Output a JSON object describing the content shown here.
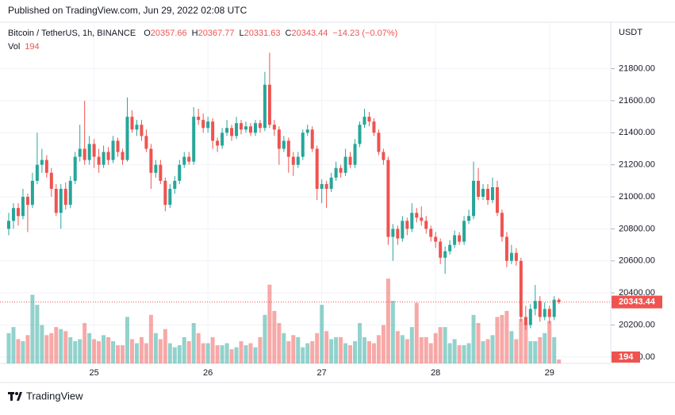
{
  "header": {
    "published": "Published on TradingView.com, Jun 29, 2022 02:08 UTC"
  },
  "chart_data": {
    "type": "candlestick",
    "symbol": "Bitcoin / TetherUS, 1h, BINANCE",
    "ohlc_labels": [
      "O",
      "H",
      "L",
      "C"
    ],
    "change": "−14.23 (−0.07%)",
    "volume_label": "Vol",
    "currency": "USDT",
    "footer": "TradingView",
    "up_color": "#26a69a",
    "down_color": "#ef5350",
    "ylim": [
      19960,
      22090
    ],
    "vol_ylim": [
      0,
      4400
    ],
    "grid": true,
    "yticks": [
      {
        "value": 20000,
        "label": "20000.00"
      },
      {
        "value": 20200,
        "label": "20200.00"
      },
      {
        "value": 20400,
        "label": "20400.00"
      },
      {
        "value": 20600,
        "label": "20600.00"
      },
      {
        "value": 20800,
        "label": "20800.00"
      },
      {
        "value": 21000,
        "label": "21000.00"
      },
      {
        "value": 21200,
        "label": "21200.00"
      },
      {
        "value": 21400,
        "label": "21400.00"
      },
      {
        "value": 21600,
        "label": "21600.00"
      },
      {
        "value": 21800,
        "label": "21800.00"
      }
    ],
    "categories": [
      null,
      null,
      null,
      null,
      null,
      null,
      null,
      null,
      null,
      null,
      null,
      null,
      null,
      null,
      null,
      null,
      null,
      null,
      "25",
      null,
      null,
      null,
      null,
      null,
      null,
      null,
      null,
      null,
      null,
      null,
      null,
      null,
      null,
      null,
      null,
      null,
      null,
      null,
      null,
      null,
      null,
      null,
      "26",
      null,
      null,
      null,
      null,
      null,
      null,
      null,
      null,
      null,
      null,
      null,
      null,
      null,
      null,
      null,
      null,
      null,
      null,
      null,
      null,
      null,
      null,
      null,
      "27",
      null,
      null,
      null,
      null,
      null,
      null,
      null,
      null,
      null,
      null,
      null,
      null,
      null,
      null,
      null,
      null,
      null,
      null,
      null,
      null,
      null,
      null,
      null,
      "28",
      null,
      null,
      null,
      null,
      null,
      null,
      null,
      null,
      null,
      null,
      null,
      null,
      null,
      null,
      null,
      null,
      null,
      null,
      null,
      null,
      null,
      null,
      null,
      "29",
      null,
      null
    ],
    "candles": [
      [
        20800,
        20900,
        20760,
        20850
      ],
      [
        20850,
        20960,
        20800,
        20930
      ],
      [
        20930,
        20960,
        20820,
        20880
      ],
      [
        20880,
        21050,
        20860,
        21000
      ],
      [
        21000,
        21020,
        20780,
        20950
      ],
      [
        20950,
        21150,
        20930,
        21100
      ],
      [
        21100,
        21400,
        21080,
        21200
      ],
      [
        21200,
        21300,
        21150,
        21230
      ],
      [
        21230,
        21260,
        21120,
        21150
      ],
      [
        21150,
        21180,
        21000,
        21050
      ],
      [
        21050,
        21080,
        20880,
        20900
      ],
      [
        20900,
        21080,
        20800,
        21050
      ],
      [
        21050,
        21090,
        20920,
        20950
      ],
      [
        20950,
        21130,
        20930,
        21100
      ],
      [
        21100,
        21280,
        21080,
        21250
      ],
      [
        21250,
        21450,
        21220,
        21300
      ],
      [
        21300,
        21600,
        21200,
        21230
      ],
      [
        21230,
        21380,
        21200,
        21330
      ],
      [
        21330,
        21360,
        21180,
        21250
      ],
      [
        21250,
        21300,
        21150,
        21200
      ],
      [
        21200,
        21320,
        21180,
        21280
      ],
      [
        21280,
        21310,
        21200,
        21230
      ],
      [
        21230,
        21380,
        21210,
        21350
      ],
      [
        21350,
        21370,
        21250,
        21280
      ],
      [
        21280,
        21300,
        21200,
        21230
      ],
      [
        21230,
        21620,
        21220,
        21500
      ],
      [
        21500,
        21540,
        21400,
        21420
      ],
      [
        21420,
        21480,
        21380,
        21450
      ],
      [
        21450,
        21480,
        21350,
        21380
      ],
      [
        21380,
        21420,
        21280,
        21300
      ],
      [
        21300,
        21330,
        21050,
        21150
      ],
      [
        21150,
        21230,
        21120,
        21200
      ],
      [
        21200,
        21230,
        21080,
        21100
      ],
      [
        21100,
        21120,
        20910,
        20950
      ],
      [
        20950,
        21080,
        20930,
        21050
      ],
      [
        21050,
        21130,
        21020,
        21100
      ],
      [
        21100,
        21230,
        21080,
        21200
      ],
      [
        21200,
        21280,
        21180,
        21250
      ],
      [
        21250,
        21280,
        21200,
        21220
      ],
      [
        21220,
        21560,
        21200,
        21500
      ],
      [
        21500,
        21550,
        21450,
        21480
      ],
      [
        21480,
        21520,
        21400,
        21430
      ],
      [
        21430,
        21500,
        21400,
        21470
      ],
      [
        21470,
        21490,
        21300,
        21350
      ],
      [
        21350,
        21370,
        21280,
        21320
      ],
      [
        21320,
        21430,
        21300,
        21400
      ],
      [
        21400,
        21480,
        21380,
        21430
      ],
      [
        21430,
        21450,
        21350,
        21380
      ],
      [
        21380,
        21500,
        21360,
        21460
      ],
      [
        21460,
        21480,
        21390,
        21420
      ],
      [
        21420,
        21470,
        21400,
        21440
      ],
      [
        21440,
        21460,
        21380,
        21400
      ],
      [
        21400,
        21480,
        21380,
        21460
      ],
      [
        21460,
        21480,
        21400,
        21430
      ],
      [
        21430,
        21780,
        21410,
        21700
      ],
      [
        21700,
        21900,
        21430,
        21450
      ],
      [
        21450,
        21480,
        21380,
        21420
      ],
      [
        21420,
        21440,
        21200,
        21300
      ],
      [
        21300,
        21380,
        21280,
        21350
      ],
      [
        21350,
        21370,
        21150,
        21250
      ],
      [
        21250,
        21280,
        21130,
        21200
      ],
      [
        21200,
        21280,
        21180,
        21250
      ],
      [
        21250,
        21420,
        21230,
        21400
      ],
      [
        21400,
        21450,
        21380,
        21420
      ],
      [
        21420,
        21440,
        21280,
        21300
      ],
      [
        21300,
        21320,
        20980,
        21050
      ],
      [
        21050,
        21110,
        20960,
        21080
      ],
      [
        21080,
        21100,
        20930,
        21050
      ],
      [
        21050,
        21150,
        21030,
        21120
      ],
      [
        21120,
        21220,
        21100,
        21180
      ],
      [
        21180,
        21200,
        21120,
        21150
      ],
      [
        21150,
        21300,
        21130,
        21250
      ],
      [
        21250,
        21280,
        21180,
        21200
      ],
      [
        21200,
        21360,
        21180,
        21330
      ],
      [
        21330,
        21470,
        21310,
        21450
      ],
      [
        21450,
        21550,
        21430,
        21500
      ],
      [
        21500,
        21530,
        21440,
        21470
      ],
      [
        21470,
        21490,
        21380,
        21400
      ],
      [
        21400,
        21420,
        21260,
        21280
      ],
      [
        21280,
        21300,
        21200,
        21230
      ],
      [
        21230,
        21250,
        20700,
        20750
      ],
      [
        20750,
        20830,
        20600,
        20800
      ],
      [
        20800,
        20820,
        20700,
        20740
      ],
      [
        20740,
        20880,
        20720,
        20850
      ],
      [
        20850,
        20870,
        20760,
        20800
      ],
      [
        20800,
        20960,
        20780,
        20900
      ],
      [
        20900,
        20930,
        20840,
        20870
      ],
      [
        20870,
        20940,
        20820,
        20850
      ],
      [
        20850,
        20880,
        20770,
        20800
      ],
      [
        20800,
        20820,
        20720,
        20750
      ],
      [
        20750,
        20780,
        20680,
        20720
      ],
      [
        20720,
        20740,
        20580,
        20620
      ],
      [
        20620,
        20690,
        20520,
        20660
      ],
      [
        20660,
        20730,
        20640,
        20700
      ],
      [
        20700,
        20790,
        20680,
        20760
      ],
      [
        20760,
        20780,
        20700,
        20720
      ],
      [
        20720,
        20880,
        20700,
        20850
      ],
      [
        20850,
        20920,
        20830,
        20880
      ],
      [
        20880,
        21220,
        20860,
        21100
      ],
      [
        21100,
        21180,
        20980,
        21000
      ],
      [
        21000,
        21080,
        20980,
        21050
      ],
      [
        21050,
        21080,
        20950,
        20980
      ],
      [
        20980,
        21120,
        20960,
        21060
      ],
      [
        21060,
        21100,
        20880,
        20900
      ],
      [
        20900,
        20920,
        20720,
        20750
      ],
      [
        20750,
        20780,
        20560,
        20600
      ],
      [
        20600,
        20700,
        20580,
        20650
      ],
      [
        20650,
        20680,
        20570,
        20600
      ],
      [
        20600,
        20620,
        20220,
        20250
      ],
      [
        20250,
        20320,
        20170,
        20200
      ],
      [
        20200,
        20330,
        20180,
        20300
      ],
      [
        20300,
        20450,
        20260,
        20350
      ],
      [
        20350,
        20380,
        20220,
        20250
      ],
      [
        20250,
        20340,
        20230,
        20300
      ],
      [
        20300,
        20320,
        20210,
        20250
      ],
      [
        20250,
        20380,
        20230,
        20357.66
      ],
      [
        20357.66,
        20367.77,
        20331.63,
        20343.44
      ]
    ],
    "volumes": [
      1500,
      1800,
      1200,
      1100,
      1400,
      3400,
      2900,
      1900,
      1400,
      1500,
      1800,
      1700,
      1600,
      1300,
      1100,
      1200,
      2000,
      1500,
      1200,
      1100,
      1400,
      1300,
      1100,
      900,
      900,
      2300,
      1200,
      1000,
      1300,
      1000,
      2400,
      1500,
      1200,
      1700,
      1000,
      800,
      900,
      1300,
      1100,
      2000,
      1500,
      1000,
      1000,
      1300,
      900,
      900,
      1000,
      700,
      800,
      1100,
      900,
      1000,
      800,
      1300,
      2400,
      3900,
      2600,
      2000,
      1500,
      1100,
      1400,
      1300,
      800,
      1000,
      1100,
      1500,
      2900,
      1600,
      1200,
      1300,
      1300,
      1000,
      900,
      1100,
      2000,
      1300,
      1100,
      1000,
      1400,
      1900,
      4200,
      3100,
      1600,
      1400,
      1200,
      1800,
      3000,
      1300,
      1300,
      1000,
      1500,
      1800,
      1800,
      1000,
      1200,
      900,
      900,
      1000,
      2400,
      2000,
      1100,
      1200,
      1400,
      2300,
      2400,
      2600,
      1600,
      1200,
      2200,
      2000,
      1100,
      1100,
      1300,
      1500,
      2100,
      1300,
      194
    ]
  }
}
